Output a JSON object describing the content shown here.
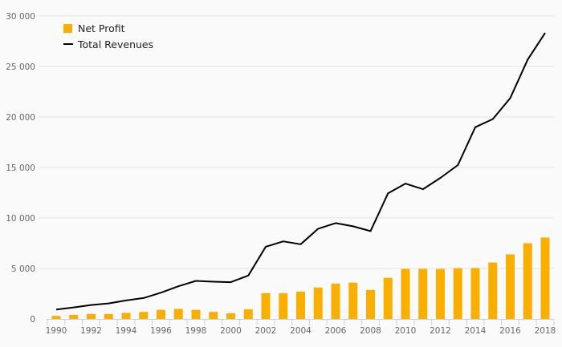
{
  "chart_data": {
    "type": "bar+line",
    "title": "",
    "xlabel": "",
    "ylabel": "",
    "ylim": [
      0,
      30000
    ],
    "yticks": [
      0,
      5000,
      10000,
      15000,
      20000,
      25000,
      30000
    ],
    "ytick_labels": [
      "0",
      "5 000",
      "10 000",
      "15 000",
      "20 000",
      "25 000",
      "30 000"
    ],
    "grid": true,
    "legend_position": "top-left",
    "x": [
      1990,
      1991,
      1992,
      1993,
      1994,
      1995,
      1996,
      1997,
      1998,
      1999,
      2000,
      2001,
      2002,
      2003,
      2004,
      2005,
      2006,
      2007,
      2008,
      2009,
      2010,
      2011,
      2012,
      2013,
      2014,
      2015,
      2016,
      2017,
      2018
    ],
    "xtick_labels": [
      "1990",
      "1992",
      "1994",
      "1996",
      "1998",
      "2000",
      "2002",
      "2004",
      "2006",
      "2008",
      "2010",
      "2012",
      "2014",
      "2016",
      "2018"
    ],
    "series": [
      {
        "name": "Net Profit",
        "type": "bar",
        "color": "#f9ae00",
        "values": [
          300,
          400,
          500,
          500,
          600,
          700,
          900,
          1000,
          900,
          700,
          560,
          960,
          2550,
          2550,
          2710,
          3110,
          3500,
          3590,
          2870,
          4070,
          4950,
          4950,
          4950,
          5030,
          5030,
          5590,
          6390,
          7500,
          8060
        ]
      },
      {
        "name": "Total Revenues",
        "type": "line",
        "color": "#000000",
        "values": [
          930,
          1140,
          1380,
          1540,
          1830,
          2070,
          2600,
          3240,
          3770,
          3690,
          3640,
          4300,
          7150,
          7680,
          7390,
          8930,
          9490,
          9170,
          8690,
          12440,
          13400,
          12840,
          13960,
          15230,
          18980,
          19780,
          21850,
          25680,
          28310
        ]
      }
    ]
  }
}
